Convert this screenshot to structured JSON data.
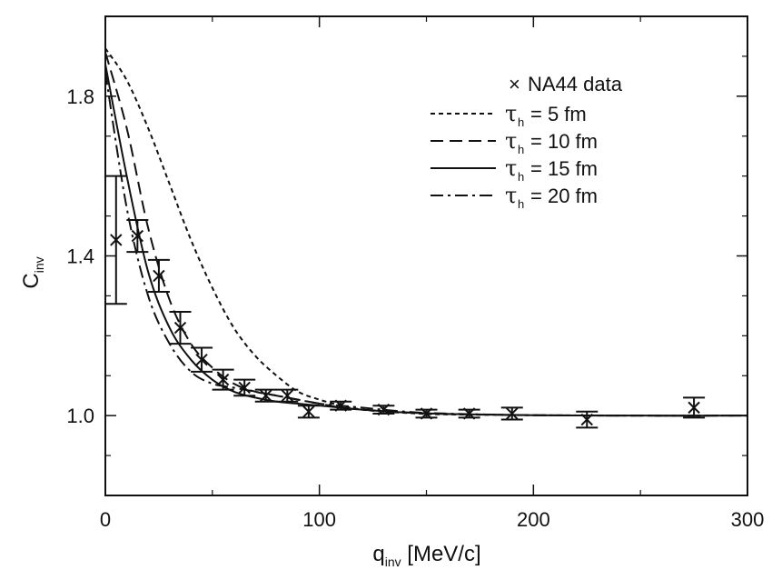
{
  "chart_data": {
    "type": "line",
    "xlim": [
      0,
      300
    ],
    "ylim": [
      0.8,
      2.0
    ],
    "x_ticks": [
      {
        "value": 0,
        "label": "0"
      },
      {
        "value": 100,
        "label": "100"
      },
      {
        "value": 200,
        "label": "200"
      },
      {
        "value": 300,
        "label": "300"
      }
    ],
    "y_ticks": [
      {
        "value": 1.0,
        "label": "1.0"
      },
      {
        "value": 1.4,
        "label": "1.4"
      },
      {
        "value": 1.8,
        "label": "1.8"
      }
    ],
    "xlabel": {
      "main": "q",
      "sub": "inv",
      "rest": " [MeV/c]"
    },
    "ylabel": {
      "main": "C",
      "sub": "inv"
    },
    "legend": {
      "placement": "top-right",
      "data_label": "NA44 data",
      "data_marker": "×",
      "tau_symbol": "τ",
      "tau_sub": "h"
    },
    "series": [
      {
        "name": "= 5 fm",
        "style": "dotted",
        "x": [
          0,
          10,
          20,
          30,
          40,
          50,
          60,
          70,
          80,
          90,
          100,
          110,
          120,
          130,
          140,
          150,
          160,
          180,
          200,
          250,
          300
        ],
        "y": [
          1.92,
          1.84,
          1.72,
          1.58,
          1.44,
          1.32,
          1.22,
          1.15,
          1.1,
          1.06,
          1.04,
          1.025,
          1.015,
          1.01,
          1.007,
          1.004,
          1.003,
          1.002,
          1.001,
          1.0,
          1.0
        ]
      },
      {
        "name": "= 10 fm",
        "style": "dashed",
        "x": [
          0,
          10,
          20,
          30,
          40,
          50,
          60,
          70,
          80,
          90,
          100,
          110,
          120,
          140,
          160,
          200,
          250,
          300
        ],
        "y": [
          1.91,
          1.72,
          1.47,
          1.29,
          1.18,
          1.12,
          1.08,
          1.06,
          1.05,
          1.04,
          1.03,
          1.02,
          1.015,
          1.008,
          1.004,
          1.001,
          1.0,
          1.0
        ]
      },
      {
        "name": "= 15 fm",
        "style": "solid",
        "x": [
          0,
          10,
          20,
          30,
          40,
          50,
          60,
          70,
          80,
          90,
          100,
          110,
          120,
          140,
          160,
          200,
          250,
          300
        ],
        "y": [
          1.88,
          1.6,
          1.36,
          1.22,
          1.14,
          1.09,
          1.06,
          1.045,
          1.035,
          1.03,
          1.025,
          1.02,
          1.015,
          1.008,
          1.004,
          1.001,
          1.0,
          1.0
        ]
      },
      {
        "name": "= 20 fm",
        "style": "dashdot",
        "x": [
          0,
          10,
          20,
          30,
          40,
          50,
          60,
          70,
          80,
          90,
          100,
          110,
          120,
          140,
          160,
          200,
          250,
          300
        ],
        "y": [
          1.86,
          1.52,
          1.3,
          1.18,
          1.11,
          1.08,
          1.07,
          1.06,
          1.05,
          1.04,
          1.03,
          1.025,
          1.02,
          1.01,
          1.005,
          1.001,
          1.0,
          1.0
        ]
      }
    ],
    "data_points": [
      {
        "x": 5,
        "y": 1.44,
        "err_low": 0.16,
        "err_high": 0.16
      },
      {
        "x": 15,
        "y": 1.45,
        "err_low": 0.04,
        "err_high": 0.04
      },
      {
        "x": 25,
        "y": 1.35,
        "err_low": 0.04,
        "err_high": 0.04
      },
      {
        "x": 35,
        "y": 1.22,
        "err_low": 0.04,
        "err_high": 0.04
      },
      {
        "x": 45,
        "y": 1.14,
        "err_low": 0.03,
        "err_high": 0.03
      },
      {
        "x": 55,
        "y": 1.09,
        "err_low": 0.025,
        "err_high": 0.025
      },
      {
        "x": 65,
        "y": 1.07,
        "err_low": 0.02,
        "err_high": 0.02
      },
      {
        "x": 75,
        "y": 1.05,
        "err_low": 0.015,
        "err_high": 0.015
      },
      {
        "x": 85,
        "y": 1.05,
        "err_low": 0.015,
        "err_high": 0.015
      },
      {
        "x": 95,
        "y": 1.01,
        "err_low": 0.015,
        "err_high": 0.015
      },
      {
        "x": 110,
        "y": 1.025,
        "err_low": 0.01,
        "err_high": 0.01
      },
      {
        "x": 130,
        "y": 1.015,
        "err_low": 0.01,
        "err_high": 0.01
      },
      {
        "x": 150,
        "y": 1.005,
        "err_low": 0.01,
        "err_high": 0.01
      },
      {
        "x": 170,
        "y": 1.005,
        "err_low": 0.01,
        "err_high": 0.01
      },
      {
        "x": 190,
        "y": 1.005,
        "err_low": 0.015,
        "err_high": 0.015
      },
      {
        "x": 225,
        "y": 0.99,
        "err_low": 0.02,
        "err_high": 0.02
      },
      {
        "x": 275,
        "y": 1.02,
        "err_low": 0.025,
        "err_high": 0.025
      }
    ]
  }
}
